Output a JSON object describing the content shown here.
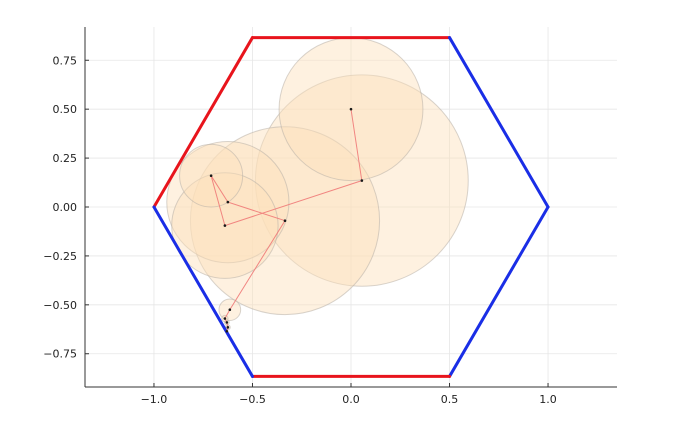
{
  "chart_data": {
    "type": "scatter",
    "title": "",
    "xlabel": "",
    "ylabel": "",
    "xlim": [
      -1.35,
      1.35
    ],
    "ylim": [
      -0.92,
      0.92
    ],
    "grid": true,
    "legend": "none",
    "x_ticks": [
      -1.0,
      -0.5,
      0.0,
      0.5,
      1.0
    ],
    "x_tick_labels": [
      "−1.0",
      "−0.5",
      "0.0",
      "0.5",
      "1.0"
    ],
    "y_ticks": [
      0.75,
      0.5,
      0.25,
      0.0,
      -0.25,
      -0.5,
      -0.75
    ],
    "y_tick_labels": [
      "0.75",
      "0.50",
      "0.25",
      "0.00",
      "−0.25",
      "−0.50",
      "−0.75"
    ],
    "hexagon_edges": [
      {
        "from": [
          -1.0,
          0.0
        ],
        "to": [
          -0.5,
          0.866
        ],
        "color": "#e8141c"
      },
      {
        "from": [
          -0.5,
          0.866
        ],
        "to": [
          0.5,
          0.866
        ],
        "color": "#e8141c"
      },
      {
        "from": [
          0.5,
          0.866
        ],
        "to": [
          1.0,
          0.0
        ],
        "color": "#1a2ee6"
      },
      {
        "from": [
          1.0,
          0.0
        ],
        "to": [
          0.5,
          -0.866
        ],
        "color": "#1a2ee6"
      },
      {
        "from": [
          0.5,
          -0.866
        ],
        "to": [
          -0.5,
          -0.866
        ],
        "color": "#e8141c"
      },
      {
        "from": [
          -0.5,
          -0.866
        ],
        "to": [
          -1.0,
          0.0
        ],
        "color": "#1a2ee6"
      }
    ],
    "circles": [
      {
        "x": 0.055,
        "y": 0.135,
        "r": 0.54
      },
      {
        "x": -0.335,
        "y": -0.07,
        "r": 0.48
      },
      {
        "x": 0.0,
        "y": 0.5,
        "r": 0.365
      },
      {
        "x": -0.625,
        "y": 0.025,
        "r": 0.31
      },
      {
        "x": -0.64,
        "y": -0.095,
        "r": 0.27
      },
      {
        "x": -0.71,
        "y": 0.16,
        "r": 0.16
      },
      {
        "x": -0.615,
        "y": -0.525,
        "r": 0.055
      },
      {
        "x": -0.64,
        "y": -0.57,
        "r": 0.016
      },
      {
        "x": -0.63,
        "y": -0.59,
        "r": 0.012
      },
      {
        "x": -0.625,
        "y": -0.615,
        "r": 0.012
      }
    ],
    "path": [
      [
        0.0,
        0.5
      ],
      [
        0.055,
        0.135
      ],
      [
        -0.64,
        -0.095
      ],
      [
        -0.71,
        0.16
      ],
      [
        -0.625,
        0.025
      ],
      [
        -0.335,
        -0.07
      ],
      [
        -0.615,
        -0.525
      ],
      [
        -0.64,
        -0.57
      ],
      [
        -0.63,
        -0.59
      ],
      [
        -0.625,
        -0.615
      ],
      [
        -0.63,
        -0.635
      ]
    ],
    "colors": {
      "circle_fill": "#fde0bb",
      "circle_stroke": "#b8b0a8",
      "path": "#f07a78",
      "point": "#1a1a1a",
      "axis": "#333333",
      "grid": "#e6e6e6"
    }
  }
}
